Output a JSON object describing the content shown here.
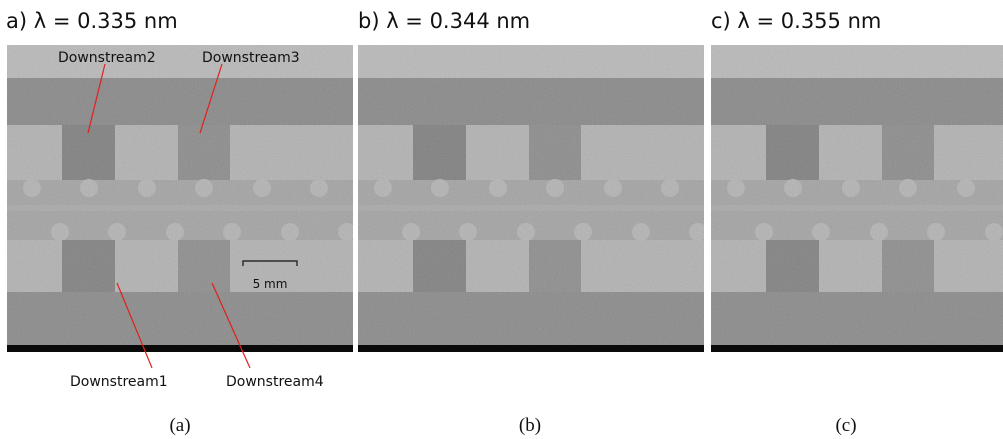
{
  "panels": [
    {
      "title": "a) λ = 0.335 nm",
      "caption": "(a)"
    },
    {
      "title": "b) λ = 0.344 nm",
      "caption": "(b)"
    },
    {
      "title": "c) λ = 0.355 nm",
      "caption": "(c)"
    }
  ],
  "annotations": [
    "Downstream2",
    "Downstream3",
    "Downstream1",
    "Downstream4"
  ],
  "scale_bar": "5 mm"
}
